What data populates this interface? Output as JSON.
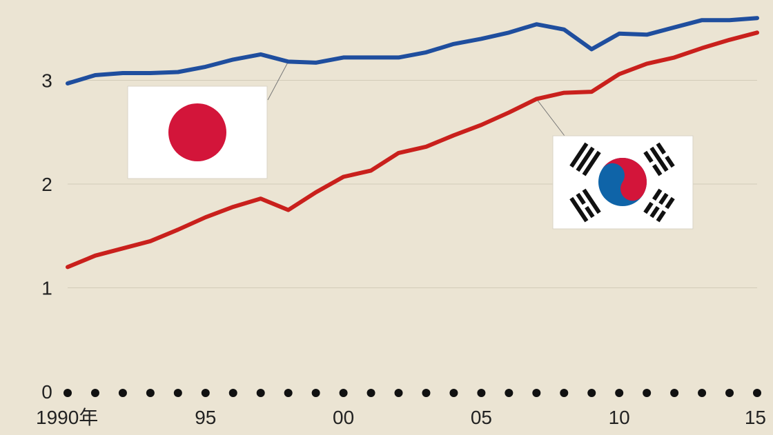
{
  "chart_data": {
    "type": "line",
    "title": "",
    "xlabel": "",
    "ylabel": "",
    "x": [
      1990,
      1991,
      1992,
      1993,
      1994,
      1995,
      1996,
      1997,
      1998,
      1999,
      2000,
      2001,
      2002,
      2003,
      2004,
      2005,
      2006,
      2007,
      2008,
      2009,
      2010,
      2011,
      2012,
      2013,
      2014,
      2015
    ],
    "xlim": [
      1990,
      2015
    ],
    "ylim": [
      0,
      3.6
    ],
    "x_ticks": [
      {
        "value": 1990,
        "label": "1990年"
      },
      {
        "value": 1995,
        "label": "95"
      },
      {
        "value": 2000,
        "label": "00"
      },
      {
        "value": 2005,
        "label": "05"
      },
      {
        "value": 2010,
        "label": "10"
      },
      {
        "value": 2015,
        "label": "15"
      }
    ],
    "y_ticks": [
      {
        "value": 0,
        "label": "0"
      },
      {
        "value": 1,
        "label": "1"
      },
      {
        "value": 2,
        "label": "2"
      },
      {
        "value": 3,
        "label": "3"
      }
    ],
    "grid": true,
    "series": [
      {
        "flag": "japan-flag",
        "color": "#1f4e9e",
        "values": [
          2.97,
          3.05,
          3.07,
          3.07,
          3.08,
          3.13,
          3.2,
          3.25,
          3.18,
          3.17,
          3.22,
          3.22,
          3.22,
          3.27,
          3.35,
          3.4,
          3.46,
          3.54,
          3.49,
          3.3,
          3.45,
          3.44,
          3.51,
          3.58,
          3.58,
          3.6
        ]
      },
      {
        "flag": "korea-flag",
        "color": "#c9201c",
        "values": [
          1.2,
          1.31,
          1.38,
          1.45,
          1.56,
          1.68,
          1.78,
          1.86,
          1.75,
          1.92,
          2.07,
          2.13,
          2.3,
          2.36,
          2.47,
          2.57,
          2.69,
          2.82,
          2.88,
          2.89,
          3.06,
          3.16,
          3.22,
          3.31,
          3.39,
          3.46
        ]
      }
    ],
    "colors": {
      "background": "#ebe4d3",
      "grid": "#d2cbb8",
      "flag_red": "#d3153a",
      "flag_blue": "#0f64a8",
      "trigram": "#111111"
    }
  }
}
